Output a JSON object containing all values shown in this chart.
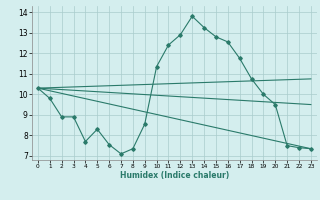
{
  "xlabel": "Humidex (Indice chaleur)",
  "background_color": "#d4eeee",
  "grid_color": "#aacccc",
  "line_color": "#2a7a6a",
  "xlim": [
    -0.5,
    23.5
  ],
  "ylim": [
    6.8,
    14.3
  ],
  "xticks": [
    0,
    1,
    2,
    3,
    4,
    5,
    6,
    7,
    8,
    9,
    10,
    11,
    12,
    13,
    14,
    15,
    16,
    17,
    18,
    19,
    20,
    21,
    22,
    23
  ],
  "yticks": [
    7,
    8,
    9,
    10,
    11,
    12,
    13,
    14
  ],
  "series1_x": [
    0,
    1,
    2,
    3,
    4,
    5,
    6,
    7,
    8,
    9,
    10,
    11,
    12,
    13,
    14,
    15,
    16,
    17,
    18,
    19,
    20,
    21,
    22,
    23
  ],
  "series1_y": [
    10.3,
    9.8,
    8.9,
    8.9,
    7.7,
    8.3,
    7.55,
    7.1,
    7.35,
    8.55,
    11.35,
    12.4,
    12.9,
    13.8,
    13.25,
    12.8,
    12.55,
    11.75,
    10.75,
    10.0,
    9.5,
    7.5,
    7.4,
    7.35
  ],
  "line2_x": [
    0,
    23
  ],
  "line2_y": [
    10.3,
    10.75
  ],
  "line3_x": [
    0,
    23
  ],
  "line3_y": [
    10.3,
    7.35
  ],
  "line4_x": [
    0,
    23
  ],
  "line4_y": [
    10.3,
    9.5
  ]
}
